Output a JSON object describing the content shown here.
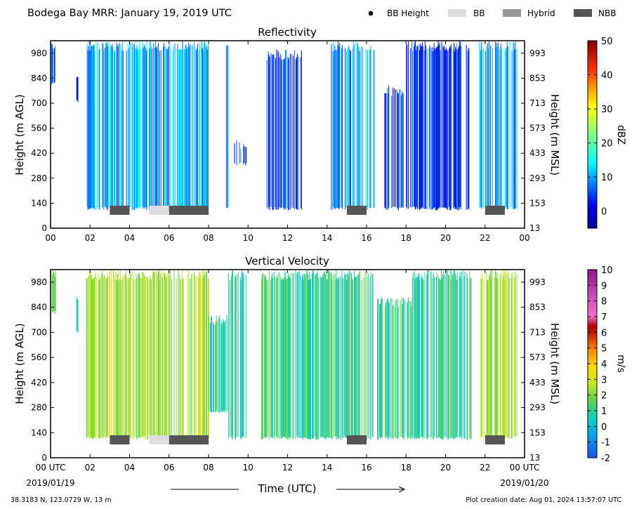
{
  "header": {
    "title": "Bodega Bay MRR:  January 19, 2019 UTC",
    "legend": [
      {
        "label": "BB Height",
        "kind": "dot",
        "color": "#000000"
      },
      {
        "label": "BB",
        "kind": "box",
        "color": "#dddddd"
      },
      {
        "label": "Hybrid",
        "kind": "box",
        "color": "#999999"
      },
      {
        "label": "NBB",
        "kind": "box",
        "color": "#555555"
      }
    ]
  },
  "footer": {
    "location": "38.3183 N, 123.0729 W, 13 m",
    "creation": "Plot creation date: Aug 01, 2024 13:57:07 UTC",
    "date_start": "2019/01/19",
    "date_end": "2019/01/20",
    "xlabel": "Time (UTC)"
  },
  "chart_data": [
    {
      "type": "heatmap",
      "title": "Reflectivity",
      "ylabel": "Height (m AGL)",
      "ylabel_right": "Height (m MSL)",
      "x_ticks": [
        "00",
        "02",
        "04",
        "06",
        "08",
        "10",
        "12",
        "14",
        "16",
        "18",
        "20",
        "22",
        "00"
      ],
      "xlim": [
        0,
        24
      ],
      "ylim": [
        0,
        1050
      ],
      "y_ticks": [
        0,
        140,
        280,
        420,
        560,
        700,
        840,
        980
      ],
      "y_ticks_right": [
        13,
        153,
        293,
        433,
        573,
        713,
        853,
        993
      ],
      "colorbar": {
        "label": "dBZ",
        "ticks": [
          0,
          10,
          20,
          30,
          40,
          50
        ],
        "range": [
          -5,
          50
        ]
      },
      "echo_periods": [
        {
          "start": 0.0,
          "end": 0.25,
          "top": 1050,
          "bottom": 800
        },
        {
          "start": 1.3,
          "end": 1.4,
          "top": 900,
          "bottom": 700
        },
        {
          "start": 1.8,
          "end": 8.0,
          "top": 1050,
          "bottom": 100
        },
        {
          "start": 8.9,
          "end": 9.0,
          "top": 1050,
          "bottom": 100
        },
        {
          "start": 9.3,
          "end": 9.9,
          "top": 500,
          "bottom": 350
        },
        {
          "start": 10.9,
          "end": 12.7,
          "top": 1000,
          "bottom": 100
        },
        {
          "start": 14.2,
          "end": 16.4,
          "top": 1050,
          "bottom": 100
        },
        {
          "start": 16.9,
          "end": 17.9,
          "top": 800,
          "bottom": 100
        },
        {
          "start": 18.0,
          "end": 20.8,
          "top": 1050,
          "bottom": 100
        },
        {
          "start": 21.0,
          "end": 21.2,
          "top": 1050,
          "bottom": 100
        },
        {
          "start": 21.7,
          "end": 23.6,
          "top": 1050,
          "bottom": 100
        }
      ],
      "bb_periods": [
        {
          "start": 3.0,
          "end": 4.0,
          "class": "NBB"
        },
        {
          "start": 5.0,
          "end": 6.0,
          "class": "BB"
        },
        {
          "start": 6.0,
          "end": 8.0,
          "class": "NBB"
        },
        {
          "start": 15.0,
          "end": 16.0,
          "class": "NBB"
        },
        {
          "start": 22.0,
          "end": 23.0,
          "class": "NBB"
        }
      ]
    },
    {
      "type": "heatmap",
      "title": "Vertical Velocity",
      "ylabel": "Height (m AGL)",
      "ylabel_right": "Height (m MSL)",
      "x_ticks": [
        "00 UTC",
        "02",
        "04",
        "06",
        "08",
        "10",
        "12",
        "14",
        "16",
        "18",
        "20",
        "22",
        "00 UTC"
      ],
      "xlim": [
        0,
        24
      ],
      "ylim": [
        0,
        1050
      ],
      "y_ticks": [
        0,
        140,
        280,
        420,
        560,
        700,
        840,
        980
      ],
      "y_ticks_right": [
        13,
        153,
        293,
        433,
        573,
        713,
        853,
        993
      ],
      "colorbar": {
        "label": "m/s",
        "ticks": [
          -2,
          -1,
          0,
          1,
          2,
          3,
          4,
          5,
          6,
          7,
          8,
          9,
          10
        ],
        "range": [
          -2,
          10
        ]
      },
      "echo_periods": [
        {
          "start": 0.0,
          "end": 0.25,
          "top": 1050,
          "bottom": 800
        },
        {
          "start": 1.3,
          "end": 1.4,
          "top": 900,
          "bottom": 700
        },
        {
          "start": 1.8,
          "end": 8.0,
          "top": 1050,
          "bottom": 100
        },
        {
          "start": 8.0,
          "end": 9.0,
          "top": 800,
          "bottom": 250
        },
        {
          "start": 9.0,
          "end": 9.9,
          "top": 1050,
          "bottom": 100
        },
        {
          "start": 10.6,
          "end": 16.4,
          "top": 1050,
          "bottom": 100
        },
        {
          "start": 16.5,
          "end": 18.3,
          "top": 900,
          "bottom": 100
        },
        {
          "start": 18.3,
          "end": 21.3,
          "top": 1050,
          "bottom": 100
        },
        {
          "start": 21.7,
          "end": 23.6,
          "top": 1050,
          "bottom": 100
        }
      ],
      "bb_periods": [
        {
          "start": 3.0,
          "end": 4.0,
          "class": "NBB"
        },
        {
          "start": 5.0,
          "end": 6.0,
          "class": "BB"
        },
        {
          "start": 6.0,
          "end": 8.0,
          "class": "NBB"
        },
        {
          "start": 15.0,
          "end": 16.0,
          "class": "NBB"
        },
        {
          "start": 22.0,
          "end": 23.0,
          "class": "NBB"
        }
      ]
    }
  ]
}
